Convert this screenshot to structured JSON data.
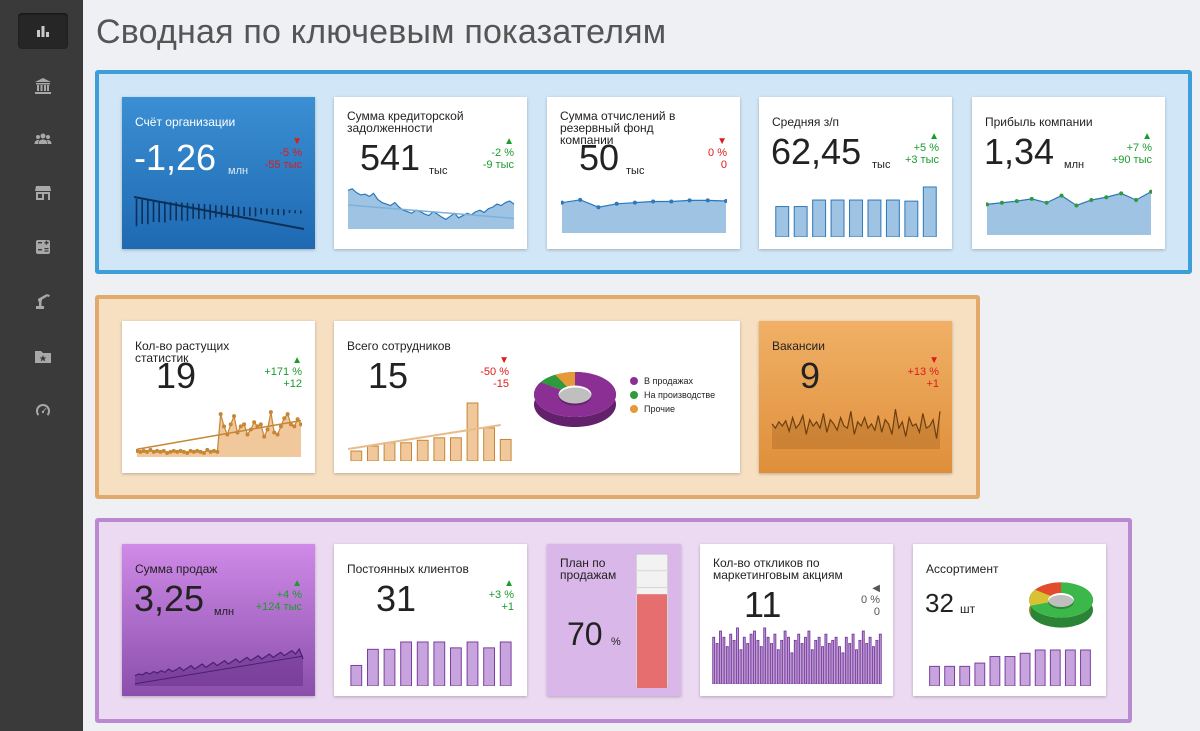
{
  "page": {
    "title": "Сводная по ключевым показателям"
  },
  "sidebar": {
    "items": [
      {
        "icon": "bar-chart-icon"
      },
      {
        "icon": "bank-icon"
      },
      {
        "icon": "users-icon"
      },
      {
        "icon": "store-icon"
      },
      {
        "icon": "calculator-icon"
      },
      {
        "icon": "robot-arm-icon"
      },
      {
        "icon": "folder-star-icon"
      },
      {
        "icon": "gauge-icon"
      }
    ]
  },
  "colors": {
    "red": "#e01a1a",
    "green": "#1a9c2b",
    "blue_fill": "#9ec3e3",
    "blue_stroke": "#2c78bc",
    "orange_fill": "#f0c89b",
    "orange_stroke": "#c68636",
    "purple_fill": "#c8a4df",
    "purple_stroke": "#7a3f9e"
  },
  "cards": {
    "account": {
      "title": "Счёт организации",
      "value": "-1,26",
      "unit": "млн",
      "arrow": "▼",
      "delta_pct": "-5 %",
      "delta_abs": "-55 тыс",
      "bars": [
        9,
        8,
        8,
        7,
        7,
        7,
        6,
        6,
        6,
        6,
        5,
        5,
        5,
        5,
        4,
        4,
        4,
        4,
        3,
        3,
        3,
        3,
        2,
        2,
        2,
        2,
        2,
        1,
        1,
        1
      ]
    },
    "payables": {
      "title": "Сумма кредиторской задолженности",
      "value": "541",
      "unit": "тыс",
      "arrow": "▲",
      "delta_pct": "-2 %",
      "delta_abs": "-9 тыс",
      "series": [
        78,
        80,
        75,
        72,
        73,
        70,
        74,
        66,
        62,
        60,
        58,
        62,
        56,
        52,
        50,
        48,
        52,
        50,
        47,
        45,
        50,
        47,
        43,
        40,
        44,
        48,
        42,
        45,
        48,
        46,
        50,
        52,
        49,
        54,
        56,
        60,
        58,
        62,
        64,
        60
      ]
    },
    "reserve": {
      "title": "Сумма отчислений в резервный фонд компании",
      "value": "50",
      "unit": "тыс",
      "arrow": "▼",
      "delta_pct": "0 %",
      "delta_abs": "0",
      "series": [
        50,
        55,
        42,
        48,
        50,
        52,
        52,
        54,
        54,
        53
      ]
    },
    "salary": {
      "title": "Средняя з/п",
      "value": "62,45",
      "unit": "тыс",
      "arrow": "▲",
      "delta_pct": "+5 %",
      "delta_abs": "+3 тыс",
      "bars": [
        56,
        56,
        68,
        68,
        68,
        68,
        68,
        66,
        92
      ]
    },
    "profit": {
      "title": "Прибыль компании",
      "value": "1,34",
      "unit": "млн",
      "arrow": "▲",
      "delta_pct": "+7 %",
      "delta_abs": "+90 тыс",
      "series": [
        52,
        55,
        58,
        62,
        55,
        68,
        50,
        60,
        65,
        72,
        60,
        75
      ]
    },
    "growth": {
      "title": "Кол-во растущих статистик",
      "value": "19",
      "arrow": "▲",
      "delta_pct": "+171 %",
      "delta_abs": "+12",
      "series": [
        4,
        3,
        4,
        3,
        5,
        3,
        4,
        3,
        4,
        2,
        3,
        4,
        3,
        4,
        3,
        2,
        4,
        3,
        4,
        3,
        2,
        5,
        3,
        4,
        3,
        40,
        28,
        20,
        30,
        38,
        22,
        28,
        30,
        20,
        25,
        32,
        28,
        30,
        18,
        25,
        42,
        22,
        20,
        28,
        36,
        40,
        30,
        28,
        35,
        30
      ]
    },
    "employees": {
      "title": "Всего сотрудников",
      "value": "15",
      "arrow": "▼",
      "delta_pct": "-50 %",
      "delta_abs": "-15",
      "bars": [
        12,
        18,
        22,
        22,
        25,
        28,
        28,
        70,
        40,
        26
      ],
      "pie": {
        "segments": [
          {
            "label": "В продажах",
            "value": 84,
            "color": "#8b2f95"
          },
          {
            "label": "На производстве",
            "value": 8,
            "color": "#2e9a3c"
          },
          {
            "label": "Прочие",
            "value": 8,
            "color": "#e59a3a"
          }
        ]
      }
    },
    "vacancies": {
      "title": "Вакансии",
      "value": "9",
      "arrow": "▼",
      "delta_pct": "+13 %",
      "delta_abs": "+1",
      "series": [
        22,
        18,
        24,
        20,
        25,
        15,
        28,
        18,
        22,
        30,
        12,
        26,
        20,
        24,
        18,
        32,
        14,
        26,
        22,
        16,
        28,
        20,
        18,
        34,
        12,
        24,
        20,
        28,
        18,
        22,
        16,
        30,
        14,
        26,
        22,
        12,
        36,
        18,
        24,
        10,
        28,
        20,
        22,
        14,
        32,
        18,
        20,
        26,
        8,
        34
      ]
    },
    "sales": {
      "title": "Сумма продаж",
      "value": "3,25",
      "unit": "млн",
      "arrow": "▲",
      "delta_pct": "+4 %",
      "delta_abs": "+124 тыс",
      "series": [
        10,
        12,
        11,
        14,
        12,
        15,
        13,
        16,
        14,
        18,
        15,
        17,
        20,
        16,
        19,
        22,
        18,
        21,
        24,
        20,
        23,
        26,
        22,
        25,
        28,
        24,
        27,
        30,
        26,
        29,
        32,
        28,
        31,
        34,
        30,
        33,
        36,
        32,
        35,
        38,
        34,
        37,
        40,
        36,
        42,
        30
      ]
    },
    "clients": {
      "title": "Постоянных клиентов",
      "value": "31",
      "arrow": "▲",
      "delta_pct": "+3 %",
      "delta_abs": "+1",
      "bars": [
        14,
        25,
        25,
        30,
        30,
        30,
        26,
        30,
        26,
        30
      ]
    },
    "plan": {
      "title": "План по продажам",
      "value": "70",
      "unit": "%",
      "fill_pct": 70
    },
    "responses": {
      "title": "Кол-во откликов по маркетинговым акциям",
      "value": "11",
      "arrow": "◀",
      "delta_pct": "0 %",
      "delta_abs": "0",
      "bars": [
        30,
        26,
        34,
        30,
        24,
        32,
        28,
        36,
        22,
        30,
        26,
        32,
        34,
        28,
        24,
        36,
        30,
        26,
        32,
        22,
        28,
        34,
        30,
        20,
        28,
        32,
        26,
        30,
        34,
        22,
        28,
        30,
        24,
        32,
        26,
        28,
        30,
        24,
        20,
        30,
        26,
        32,
        22,
        28,
        34,
        26,
        30,
        24,
        28,
        32
      ]
    },
    "assortment": {
      "title": "Ассортимент",
      "value": "32",
      "unit": "шт",
      "bars": [
        12,
        12,
        12,
        14,
        18,
        18,
        20,
        22,
        22,
        22,
        22
      ],
      "pie": {
        "segments": [
          {
            "label": "",
            "value": 70,
            "color": "#3cb84a"
          },
          {
            "label": "",
            "value": 15,
            "color": "#d8c233"
          },
          {
            "label": "",
            "value": 15,
            "color": "#e24c2c"
          }
        ]
      }
    }
  }
}
